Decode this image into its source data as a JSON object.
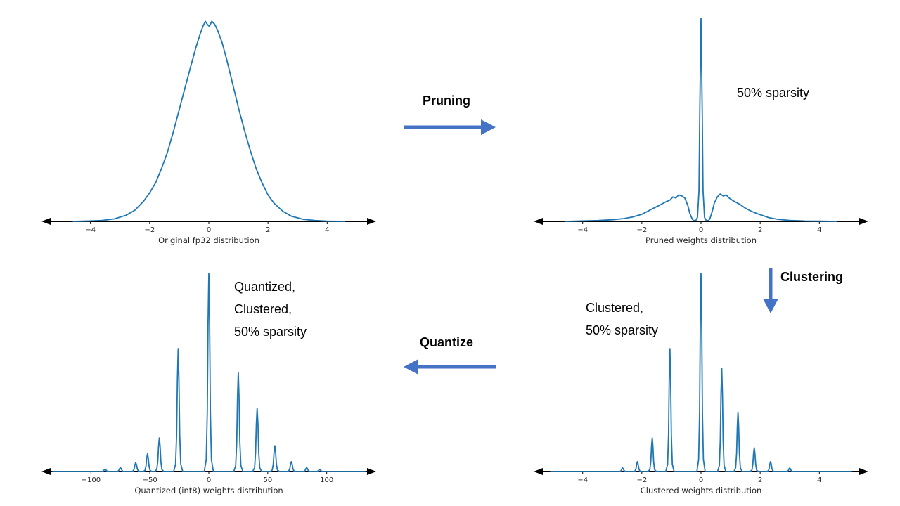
{
  "background": "#ffffff",
  "curve_color": "#1f77b4",
  "arrow_color": "#4472c4",
  "arrows": [
    {
      "label": "Pruning",
      "direction": "right",
      "color": "#4472c4"
    },
    {
      "label": "Clustering",
      "direction": "down",
      "color": "#4472c4"
    },
    {
      "label": "Quantize",
      "direction": "left",
      "color": "#4472c4"
    }
  ],
  "chart_data": [
    {
      "id": "original",
      "type": "line",
      "title": "Original fp32 distribution",
      "color": "#1f77b4",
      "xlim": [
        -5.3,
        5.3
      ],
      "ylim": [
        0,
        1
      ],
      "xticks": {
        "values": [
          -4,
          -2,
          0,
          2,
          4
        ],
        "labels": [
          "−4",
          "−2",
          "0",
          "2",
          "4"
        ]
      },
      "annotation": "",
      "points": [
        [
          -4.6,
          0
        ],
        [
          -4,
          0.002
        ],
        [
          -3.6,
          0.005
        ],
        [
          -3.2,
          0.012
        ],
        [
          -2.8,
          0.03
        ],
        [
          -2.5,
          0.055
        ],
        [
          -2.2,
          0.1
        ],
        [
          -2,
          0.14
        ],
        [
          -1.8,
          0.19
        ],
        [
          -1.6,
          0.26
        ],
        [
          -1.4,
          0.34
        ],
        [
          -1.2,
          0.44
        ],
        [
          -1,
          0.55
        ],
        [
          -0.8,
          0.66
        ],
        [
          -0.6,
          0.77
        ],
        [
          -0.45,
          0.85
        ],
        [
          -0.3,
          0.92
        ],
        [
          -0.2,
          0.96
        ],
        [
          -0.12,
          0.985
        ],
        [
          -0.05,
          0.97
        ],
        [
          0.02,
          0.96
        ],
        [
          0.1,
          0.985
        ],
        [
          0.2,
          0.97
        ],
        [
          0.3,
          0.94
        ],
        [
          0.45,
          0.88
        ],
        [
          0.6,
          0.8
        ],
        [
          0.8,
          0.68
        ],
        [
          1,
          0.56
        ],
        [
          1.2,
          0.45
        ],
        [
          1.4,
          0.35
        ],
        [
          1.6,
          0.26
        ],
        [
          1.8,
          0.19
        ],
        [
          2,
          0.13
        ],
        [
          2.2,
          0.09
        ],
        [
          2.5,
          0.05
        ],
        [
          2.8,
          0.025
        ],
        [
          3.2,
          0.01
        ],
        [
          3.6,
          0.004
        ],
        [
          4,
          0.001
        ],
        [
          4.6,
          0
        ]
      ]
    },
    {
      "id": "pruned",
      "type": "line",
      "title": "Pruned weights distribution",
      "color": "#1f77b4",
      "xlim": [
        -5.3,
        5.3
      ],
      "ylim": [
        0,
        1
      ],
      "xticks": {
        "values": [
          -4,
          -2,
          0,
          2,
          4
        ],
        "labels": [
          "−4",
          "−2",
          "0",
          "2",
          "4"
        ]
      },
      "annotation": "50% sparsity",
      "points": [
        [
          -4.6,
          0
        ],
        [
          -4,
          0.002
        ],
        [
          -3.5,
          0.004
        ],
        [
          -3,
          0.008
        ],
        [
          -2.6,
          0.014
        ],
        [
          -2.3,
          0.022
        ],
        [
          -2,
          0.035
        ],
        [
          -1.8,
          0.05
        ],
        [
          -1.6,
          0.065
        ],
        [
          -1.4,
          0.08
        ],
        [
          -1.2,
          0.095
        ],
        [
          -1.05,
          0.105
        ],
        [
          -0.95,
          0.12
        ],
        [
          -0.85,
          0.115
        ],
        [
          -0.75,
          0.13
        ],
        [
          -0.65,
          0.125
        ],
        [
          -0.55,
          0.115
        ],
        [
          -0.45,
          0.08
        ],
        [
          -0.38,
          0.04
        ],
        [
          -0.3,
          0.012
        ],
        [
          -0.25,
          0.004
        ],
        [
          -0.18,
          0.003
        ],
        [
          -0.12,
          0.02
        ],
        [
          -0.07,
          0.15
        ],
        [
          -0.04,
          0.55
        ],
        [
          0,
          1.0
        ],
        [
          0.04,
          0.55
        ],
        [
          0.07,
          0.15
        ],
        [
          0.12,
          0.02
        ],
        [
          0.18,
          0.003
        ],
        [
          0.25,
          0.004
        ],
        [
          0.3,
          0.012
        ],
        [
          0.38,
          0.05
        ],
        [
          0.45,
          0.09
        ],
        [
          0.55,
          0.12
        ],
        [
          0.65,
          0.135
        ],
        [
          0.75,
          0.125
        ],
        [
          0.85,
          0.13
        ],
        [
          0.95,
          0.115
        ],
        [
          1.1,
          0.1
        ],
        [
          1.3,
          0.085
        ],
        [
          1.5,
          0.065
        ],
        [
          1.7,
          0.05
        ],
        [
          1.9,
          0.038
        ],
        [
          2.1,
          0.028
        ],
        [
          2.3,
          0.018
        ],
        [
          2.6,
          0.01
        ],
        [
          3,
          0.005
        ],
        [
          3.5,
          0.002
        ],
        [
          4,
          0.001
        ],
        [
          4.6,
          0
        ]
      ]
    },
    {
      "id": "clustered",
      "type": "line",
      "title": "Clustered weights distribution",
      "color": "#1f77b4",
      "xlim": [
        -5.3,
        5.3
      ],
      "ylim": [
        0,
        1
      ],
      "xticks": {
        "values": [
          -4,
          -2,
          0,
          2,
          4
        ],
        "labels": [
          "−4",
          "−2",
          "0",
          "2",
          "4"
        ]
      },
      "annotation": "Clustered,\n50% sparsity",
      "spike_width": 0.04,
      "spikes": [
        [
          -2.65,
          0.018
        ],
        [
          -2.15,
          0.05
        ],
        [
          -1.65,
          0.17
        ],
        [
          -1.05,
          0.62
        ],
        [
          0,
          1.0
        ],
        [
          0.7,
          0.52
        ],
        [
          1.25,
          0.3
        ],
        [
          1.8,
          0.12
        ],
        [
          2.35,
          0.05
        ],
        [
          3.0,
          0.018
        ]
      ]
    },
    {
      "id": "quantized_int8",
      "type": "line",
      "title": "Quantized (int8) weights distribution",
      "color": "#1f77b4",
      "xlim": [
        -133,
        133
      ],
      "ylim": [
        0,
        1
      ],
      "xticks": {
        "values": [
          -100,
          -50,
          0,
          50,
          100
        ],
        "labels": [
          "−100",
          "−50",
          "0",
          "50",
          "100"
        ]
      },
      "annotation": "Quantized,\nClustered,\n50% sparsity",
      "spike_width": 1.1,
      "spikes": [
        [
          -88,
          0.012
        ],
        [
          -75,
          0.02
        ],
        [
          -62,
          0.045
        ],
        [
          -52,
          0.09
        ],
        [
          -42,
          0.17
        ],
        [
          -26,
          0.62
        ],
        [
          0,
          1.0
        ],
        [
          25,
          0.5
        ],
        [
          41,
          0.32
        ],
        [
          56,
          0.13
        ],
        [
          70,
          0.05
        ],
        [
          83,
          0.02
        ],
        [
          94,
          0.01
        ]
      ]
    }
  ]
}
